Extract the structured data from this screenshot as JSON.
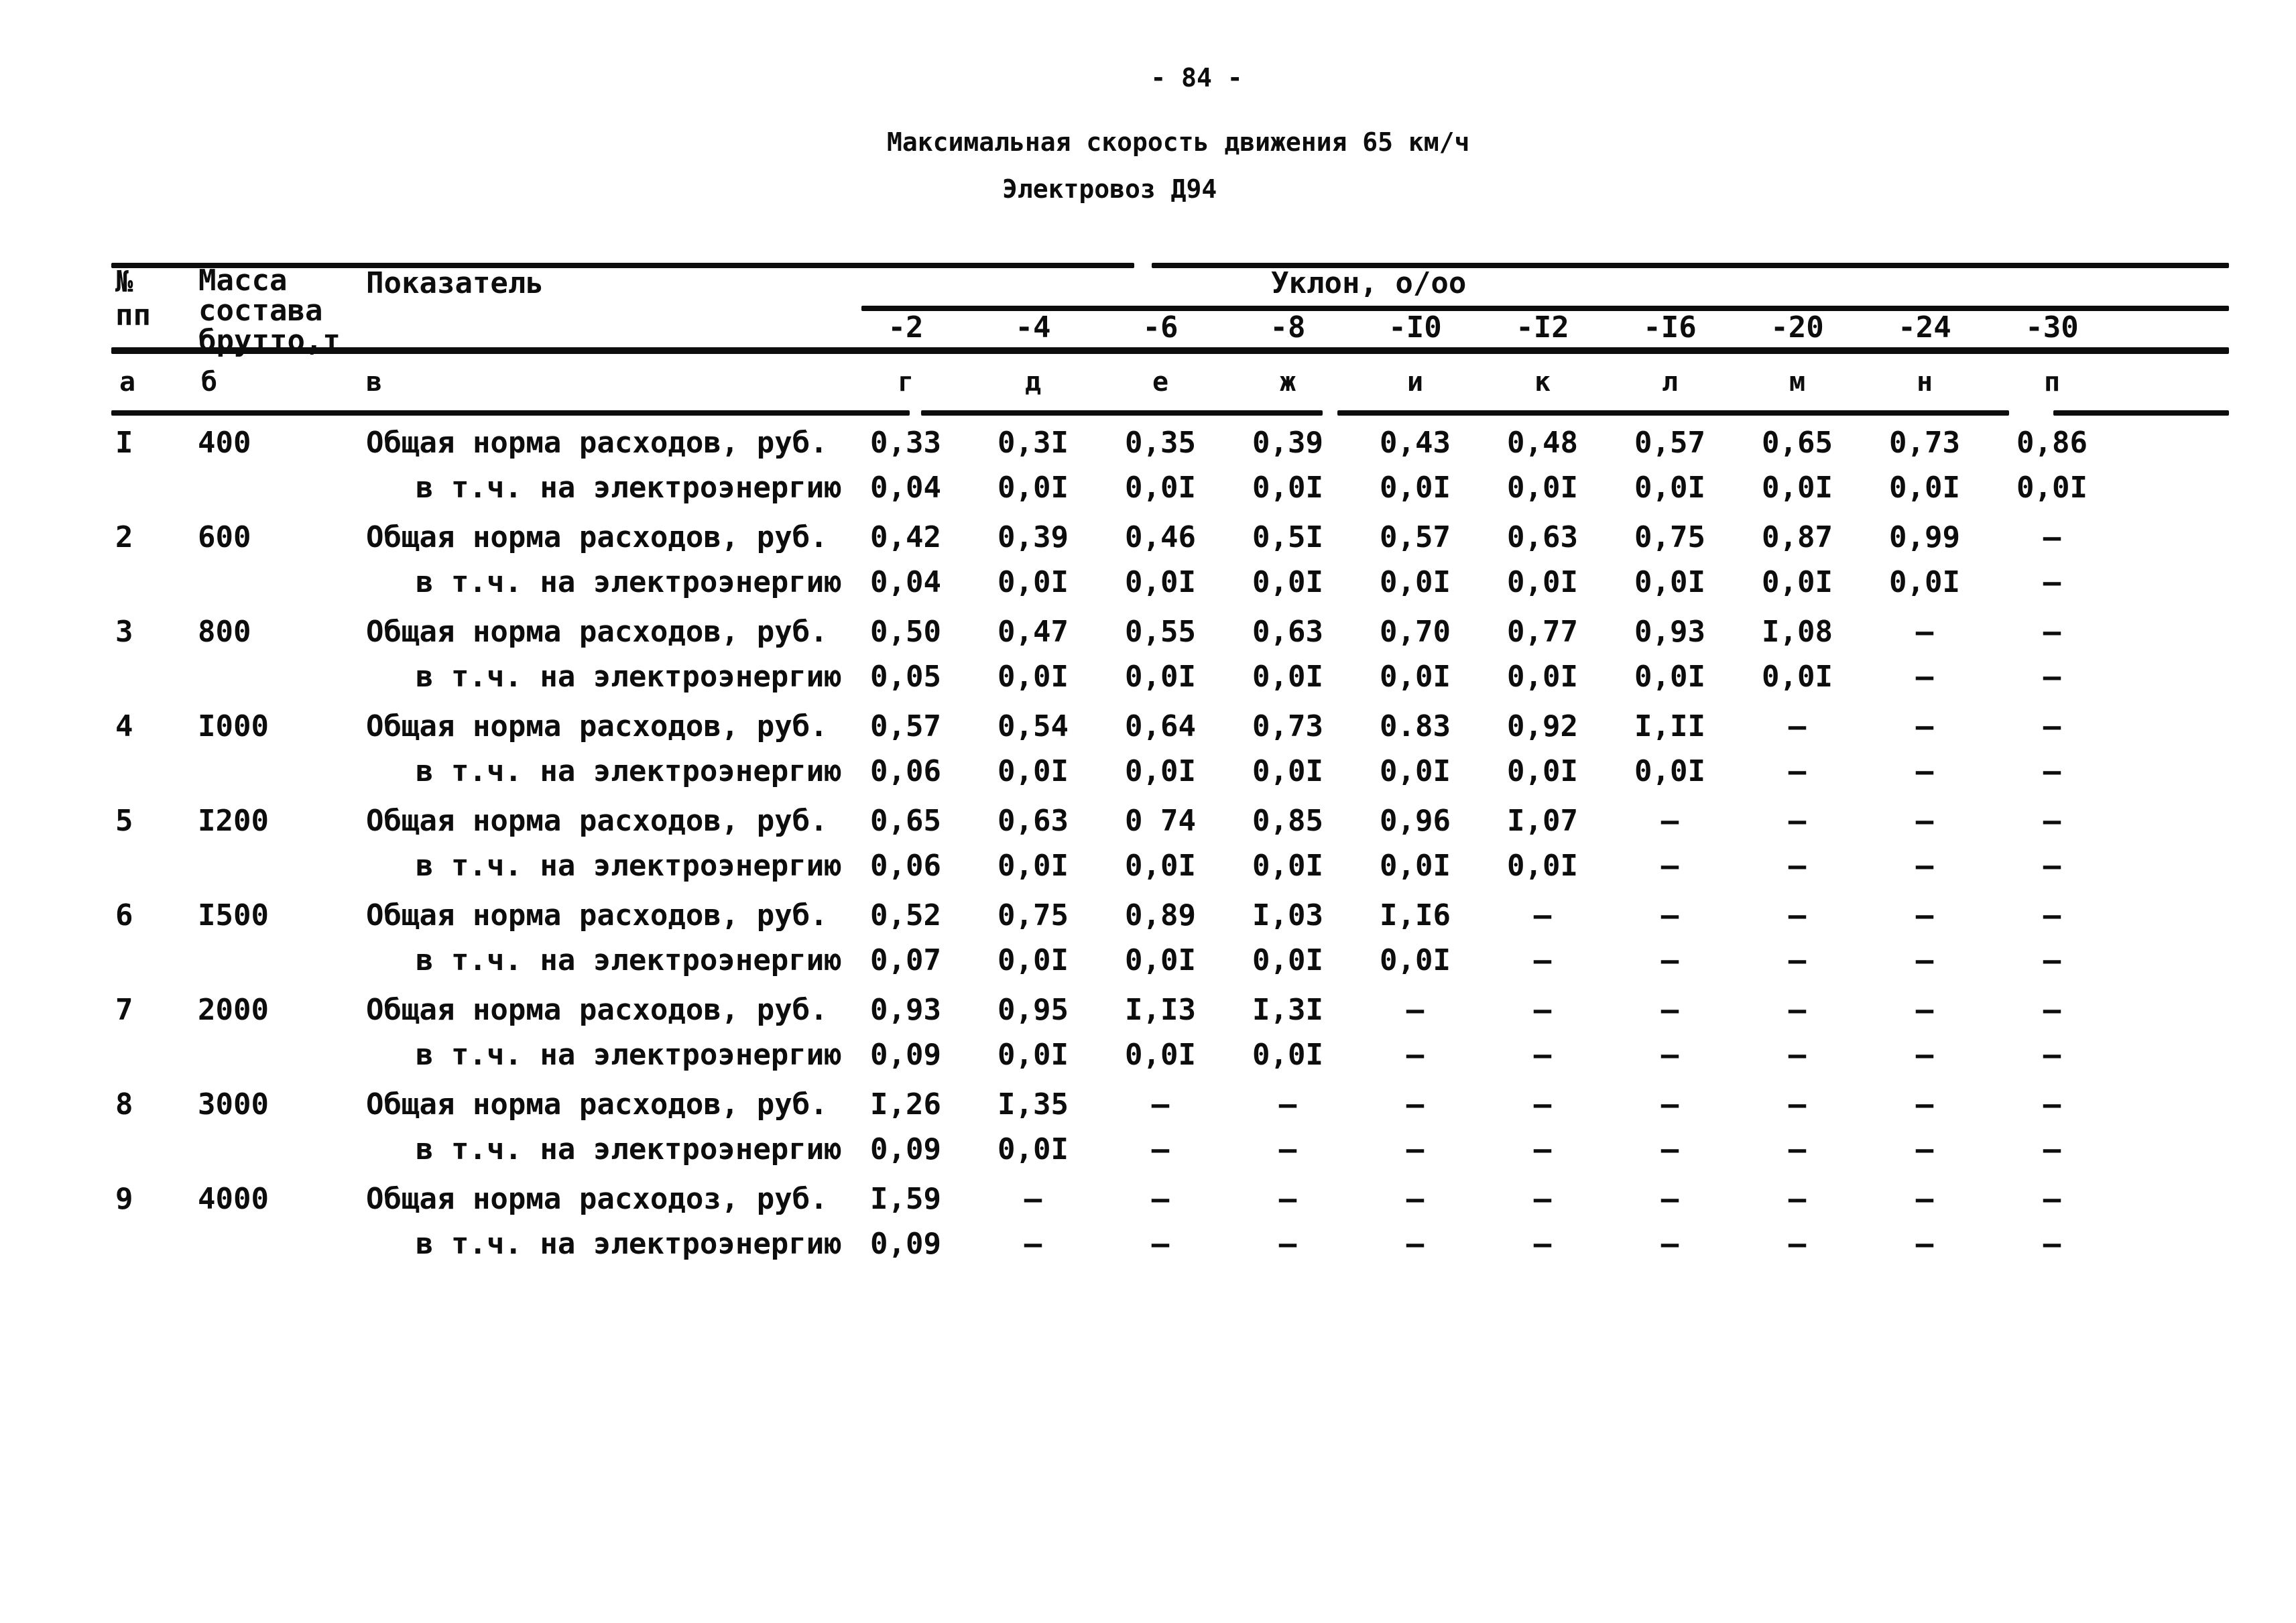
{
  "page": {
    "number": "- 84 -",
    "title": "Максимальная скорость движения 65 км/ч",
    "subtitle": "Электровоз Д94"
  },
  "table": {
    "header": {
      "num_lines": [
        "№",
        "пп"
      ],
      "mass_lines": [
        "Масса",
        "состава",
        "брутто,т"
      ],
      "indicator": "Показатель",
      "slope_group": "Уклон, о/оо",
      "slopes": [
        "-2",
        "-4",
        "-6",
        "-8",
        "-I0",
        "-I2",
        "-I6",
        "-20",
        "-24",
        "-30"
      ],
      "letters": [
        "а",
        "б",
        "в",
        "г",
        "д",
        "е",
        "ж",
        "и",
        "к",
        "л",
        "м",
        "н",
        "п"
      ]
    },
    "rows": [
      {
        "num": "I",
        "mass": "400",
        "label1": "Общая норма расходов, руб.",
        "values1": [
          "0,33",
          "0,3I",
          "0,35",
          "0,39",
          "0,43",
          "0,48",
          "0,57",
          "0,65",
          "0,73",
          "0,86"
        ],
        "label2": "в т.ч. на электроэнергию",
        "values2": [
          "0,04",
          "0,0I",
          "0,0I",
          "0,0I",
          "0,0I",
          "0,0I",
          "0,0I",
          "0,0I",
          "0,0I",
          "0,0I"
        ]
      },
      {
        "num": "2",
        "mass": "600",
        "label1": "Общая норма расходов, руб.",
        "values1": [
          "0,42",
          "0,39",
          "0,46",
          "0,5I",
          "0,57",
          "0,63",
          "0,75",
          "0,87",
          "0,99",
          "–"
        ],
        "label2": "в т.ч. на электроэнергию",
        "values2": [
          "0,04",
          "0,0I",
          "0,0I",
          "0,0I",
          "0,0I",
          "0,0I",
          "0,0I",
          "0,0I",
          "0,0I",
          "–"
        ]
      },
      {
        "num": "3",
        "mass": "800",
        "label1": "Общая норма расходов, руб.",
        "values1": [
          "0,50",
          "0,47",
          "0,55",
          "0,63",
          "0,70",
          "0,77",
          "0,93",
          "I,08",
          "–",
          "–"
        ],
        "label2": "в т.ч. на электроэнергию",
        "values2": [
          "0,05",
          "0,0I",
          "0,0I",
          "0,0I",
          "0,0I",
          "0,0I",
          "0,0I",
          "0,0I",
          "–",
          "–"
        ]
      },
      {
        "num": "4",
        "mass": "I000",
        "label1": "Общая норма расходов, руб.",
        "values1": [
          "0,57",
          "0,54",
          "0,64",
          "0,73",
          "0.83",
          "0,92",
          "I,II",
          "–",
          "–",
          "–"
        ],
        "label2": "в т.ч. на электроэнергию",
        "values2": [
          "0,06",
          "0,0I",
          "0,0I",
          "0,0I",
          "0,0I",
          "0,0I",
          "0,0I",
          "–",
          "–",
          "–"
        ]
      },
      {
        "num": "5",
        "mass": "I200",
        "label1": "Общая норма расходов, руб.",
        "values1": [
          "0,65",
          "0,63",
          "0 74",
          "0,85",
          "0,96",
          "I,07",
          "–",
          "–",
          "–",
          "–"
        ],
        "label2": "в т.ч. на электроэнергию",
        "values2": [
          "0,06",
          "0,0I",
          "0,0I",
          "0,0I",
          "0,0I",
          "0,0I",
          "–",
          "–",
          "–",
          "–"
        ]
      },
      {
        "num": "6",
        "mass": "I500",
        "label1": "Общая норма расходов, руб.",
        "values1": [
          "0,52",
          "0,75",
          "0,89",
          "I,03",
          "I,I6",
          "–",
          "–",
          "–",
          "–",
          "–"
        ],
        "label2": "в т.ч. на электроэнергию",
        "values2": [
          "0,07",
          "0,0I",
          "0,0I",
          "0,0I",
          "0,0I",
          "–",
          "–",
          "–",
          "–",
          "–"
        ]
      },
      {
        "num": "7",
        "mass": "2000",
        "label1": "Общая норма расходов, руб.",
        "values1": [
          "0,93",
          "0,95",
          "I,I3",
          "I,3I",
          "–",
          "–",
          "–",
          "–",
          "–",
          "–"
        ],
        "label2": "в т.ч. на электроэнергию",
        "values2": [
          "0,09",
          "0,0I",
          "0,0I",
          "0,0I",
          "–",
          "–",
          "–",
          "–",
          "–",
          "–"
        ]
      },
      {
        "num": "8",
        "mass": "3000",
        "label1": "Общая норма расходов, руб.",
        "values1": [
          "I,26",
          "I,35",
          "–",
          "–",
          "–",
          "–",
          "–",
          "–",
          "–",
          "–"
        ],
        "label2": "в т.ч. на электроэнергию",
        "values2": [
          "0,09",
          "0,0I",
          "–",
          "–",
          "–",
          "–",
          "–",
          "–",
          "–",
          "–"
        ]
      },
      {
        "num": "9",
        "mass": "4000",
        "label1": "Общая норма расходоз, руб.",
        "values1": [
          "I,59",
          "–",
          "–",
          "–",
          "–",
          "–",
          "–",
          "–",
          "–",
          "–"
        ],
        "label2": "в т.ч. на электроэнергию",
        "values2": [
          "0,09",
          "–",
          "–",
          "–",
          "–",
          "–",
          "–",
          "–",
          "–",
          "–"
        ]
      }
    ]
  }
}
